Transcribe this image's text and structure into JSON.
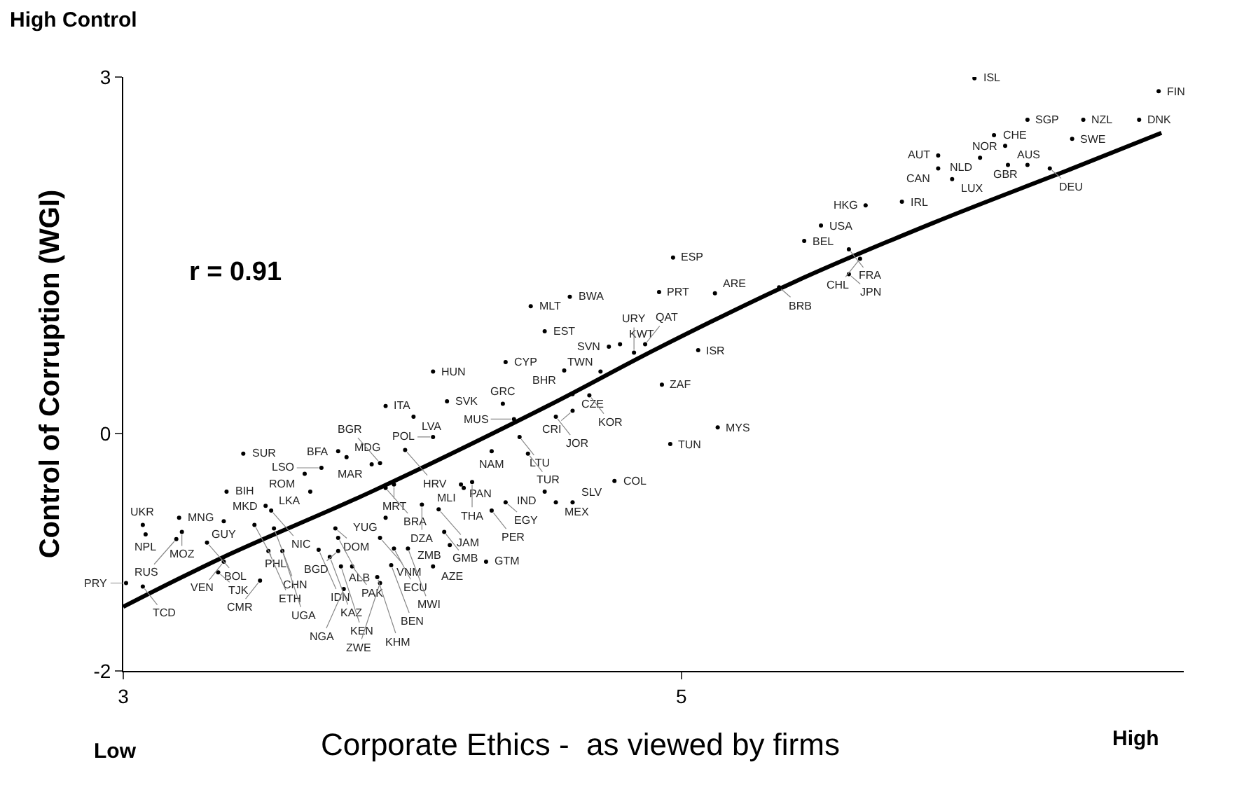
{
  "chart_data": {
    "type": "scatter",
    "xlabel": "Corporate Ethics -  as viewed by firms",
    "ylabel": "Control of Corruption (WGI)",
    "xlim": [
      3,
      6.8
    ],
    "xticks": [
      3,
      5
    ],
    "ylim": [
      -2,
      3
    ],
    "yticks": [
      3,
      0,
      -2
    ],
    "series": [
      {
        "type": "scatter",
        "color": "#000000",
        "marker": "circle",
        "x": [
          4.46,
          4.6,
          4.51,
          4.74,
          4.11,
          4.37,
          4.58,
          4.71,
          3.94,
          4.16,
          4.04,
          4.36,
          4.61,
          4.67,
          4.61,
          4.55,
          4.4,
          4.42,
          4.93,
          4.11,
          3.43,
          3.77,
          3.8,
          4.01,
          4.32,
          4.45,
          3.89,
          3.92,
          3.71,
          3.65,
          3.67,
          3.37,
          3.97,
          3.94,
          4.21,
          4.22,
          4.25,
          4.51,
          4.76,
          4.37,
          4.55,
          4.61,
          4.07,
          4.13,
          4.32,
          3.51,
          3.53,
          3.2,
          3.36,
          3.47,
          3.94,
          3.07,
          3.08,
          3.21,
          3.19,
          3.54,
          3.76,
          4.15,
          3.3,
          3.52,
          3.77,
          3.92,
          3.97,
          4.02,
          4.17,
          3.57,
          3.7,
          3.77,
          3.74,
          3.78,
          3.82,
          3.96,
          4.11,
          4.3,
          3.36,
          3.34,
          3.49,
          3.91,
          3.79,
          3.92,
          3.01,
          3.07,
          6.05,
          6.71,
          6.24,
          6.44,
          6.64,
          6.12,
          6.16,
          6.4,
          5.92,
          6.07,
          6.17,
          6.24,
          6.32,
          5.92,
          5.97,
          5.66,
          5.79,
          5.5,
          5.44,
          5.6,
          5.64,
          5.6,
          4.97,
          4.92,
          5.12,
          5.35,
          5.06,
          5.13,
          4.96,
          4.78,
          4.83,
          4.87
        ],
        "values": [
          1.07,
          1.15,
          0.86,
          0.73,
          0.52,
          0.6,
          0.53,
          0.52,
          0.23,
          0.27,
          0.14,
          0.25,
          0.33,
          0.32,
          0.19,
          0.14,
          0.12,
          -0.03,
          0.41,
          -0.03,
          -0.17,
          -0.15,
          -0.2,
          -0.14,
          -0.15,
          -0.17,
          -0.26,
          -0.25,
          -0.29,
          -0.34,
          -0.49,
          -0.49,
          -0.43,
          -0.46,
          -0.43,
          -0.46,
          -0.41,
          -0.49,
          -0.4,
          -0.58,
          -0.58,
          -0.58,
          -0.6,
          -0.64,
          -0.65,
          -0.61,
          -0.65,
          -0.71,
          -0.74,
          -0.77,
          -0.71,
          -0.77,
          -0.85,
          -0.83,
          -0.89,
          -0.8,
          -0.8,
          -0.83,
          -0.92,
          -0.99,
          -0.88,
          -0.88,
          -0.97,
          -0.97,
          -0.94,
          -0.99,
          -0.98,
          -0.99,
          -1.04,
          -1.12,
          -1.12,
          -1.11,
          -1.12,
          -1.08,
          -1.08,
          -1.17,
          -1.24,
          -1.21,
          -1.31,
          -1.26,
          -1.26,
          -1.29,
          2.99,
          2.88,
          2.64,
          2.64,
          2.64,
          2.51,
          2.42,
          2.48,
          2.34,
          2.32,
          2.26,
          2.26,
          2.23,
          2.23,
          2.14,
          1.92,
          1.95,
          1.75,
          1.62,
          1.55,
          1.47,
          1.34,
          1.48,
          1.19,
          1.18,
          1.23,
          0.7,
          0.05,
          -0.09,
          0.75,
          0.68,
          0.75
        ]
      },
      {
        "type": "line",
        "color": "#000000",
        "line_style": "solid",
        "x": [
          3,
          3.36,
          3.89,
          4.52,
          4.91,
          5.4,
          5.9,
          6.4,
          6.72
        ],
        "values": [
          -1.46,
          -1.04,
          -0.49,
          0.23,
          0.71,
          1.27,
          1.77,
          2.23,
          2.53
        ]
      }
    ],
    "annotations": [
      "High Control",
      "Low",
      "High",
      "r = 0.91",
      {
        "text": "MLT",
        "x": 4.46,
        "y": 1.07
      },
      {
        "text": "BWA",
        "x": 4.6,
        "y": 1.15
      },
      {
        "text": "EST",
        "x": 4.51,
        "y": 0.86
      },
      {
        "text": "SVN",
        "x": 4.74,
        "y": 0.73
      },
      {
        "text": "HUN",
        "x": 4.11,
        "y": 0.52
      },
      {
        "text": "CYP",
        "x": 4.37,
        "y": 0.6
      },
      {
        "text": "BHR",
        "x": 4.58,
        "y": 0.53
      },
      {
        "text": "TWN",
        "x": 4.71,
        "y": 0.52
      },
      {
        "text": "ITA",
        "x": 3.94,
        "y": 0.23
      },
      {
        "text": "SVK",
        "x": 4.16,
        "y": 0.27
      },
      {
        "text": "LVA",
        "x": 4.04,
        "y": 0.14
      },
      {
        "text": "GRC",
        "x": 4.36,
        "y": 0.25
      },
      {
        "text": "CZE",
        "x": 4.61,
        "y": 0.33
      },
      {
        "text": "KOR",
        "x": 4.67,
        "y": 0.32
      },
      {
        "text": "CRI",
        "x": 4.61,
        "y": 0.19
      },
      {
        "text": "JOR",
        "x": 4.55,
        "y": 0.14
      },
      {
        "text": "MUS",
        "x": 4.4,
        "y": 0.12
      },
      {
        "text": "LTU",
        "x": 4.42,
        "y": -0.03
      },
      {
        "text": "ZAF",
        "x": 4.93,
        "y": 0.41
      },
      {
        "text": "POL",
        "x": 4.11,
        "y": -0.03
      },
      {
        "text": "SUR",
        "x": 3.43,
        "y": -0.17
      },
      {
        "text": "BFA",
        "x": 3.77,
        "y": -0.15
      },
      {
        "text": "MDG",
        "x": 3.8,
        "y": -0.2
      },
      {
        "text": "HRV",
        "x": 4.01,
        "y": -0.14
      },
      {
        "text": "NAM",
        "x": 4.32,
        "y": -0.15
      },
      {
        "text": "TUR",
        "x": 4.45,
        "y": -0.17
      },
      {
        "text": "MAR",
        "x": 3.89,
        "y": -0.26
      },
      {
        "text": "BGR",
        "x": 3.92,
        "y": -0.25
      },
      {
        "text": "LSO",
        "x": 3.71,
        "y": -0.29
      },
      {
        "text": "ROM",
        "x": 3.65,
        "y": -0.34
      },
      {
        "text": "LKA",
        "x": 3.67,
        "y": -0.49
      },
      {
        "text": "BIH",
        "x": 3.37,
        "y": -0.49
      },
      {
        "text": "MRT",
        "x": 3.97,
        "y": -0.43
      },
      {
        "text": "BRA",
        "x": 3.94,
        "y": -0.46
      },
      {
        "text": "PAN",
        "x": 4.21,
        "y": -0.43
      },
      {
        "text": "MLI",
        "x": 4.22,
        "y": -0.46
      },
      {
        "text": "THA",
        "x": 4.25,
        "y": -0.41
      },
      {
        "text": "IND",
        "x": 4.51,
        "y": -0.49
      },
      {
        "text": "COL",
        "x": 4.76,
        "y": -0.4
      },
      {
        "text": "EGY",
        "x": 4.37,
        "y": -0.58
      },
      {
        "text": "MEX",
        "x": 4.55,
        "y": -0.58
      },
      {
        "text": "SLV",
        "x": 4.61,
        "y": -0.58
      },
      {
        "text": "DZA",
        "x": 4.07,
        "y": -0.6
      },
      {
        "text": "JAM",
        "x": 4.13,
        "y": -0.64
      },
      {
        "text": "PER",
        "x": 4.32,
        "y": -0.65
      },
      {
        "text": "MKD",
        "x": 3.51,
        "y": -0.61
      },
      {
        "text": "NIC",
        "x": 3.53,
        "y": -0.65
      },
      {
        "text": "MNG",
        "x": 3.2,
        "y": -0.71
      },
      {
        "text": "GUY",
        "x": 3.36,
        "y": -0.74
      },
      {
        "text": "PHL",
        "x": 3.47,
        "y": -0.77
      },
      {
        "text": "YUG",
        "x": 3.94,
        "y": -0.71
      },
      {
        "text": "UKR",
        "x": 3.07,
        "y": -0.77
      },
      {
        "text": "NPL",
        "x": 3.08,
        "y": -0.85
      },
      {
        "text": "MOZ",
        "x": 3.21,
        "y": -0.83
      },
      {
        "text": "RUS",
        "x": 3.19,
        "y": -0.89
      },
      {
        "text": "CHN",
        "x": 3.54,
        "y": -0.8
      },
      {
        "text": "DOM",
        "x": 3.76,
        "y": -0.8
      },
      {
        "text": "GMB",
        "x": 4.15,
        "y": -0.83
      },
      {
        "text": "BOL",
        "x": 3.3,
        "y": -0.92
      },
      {
        "text": "ETH",
        "x": 3.52,
        "y": -0.99
      },
      {
        "text": "ALB",
        "x": 3.77,
        "y": -0.88
      },
      {
        "text": "VNM",
        "x": 3.92,
        "y": -0.88
      },
      {
        "text": "ECU",
        "x": 3.97,
        "y": -0.97
      },
      {
        "text": "MWI",
        "x": 4.02,
        "y": -0.97
      },
      {
        "text": "ZMB",
        "x": 4.17,
        "y": -0.94
      },
      {
        "text": "UGA",
        "x": 3.57,
        "y": -0.99
      },
      {
        "text": "IDN",
        "x": 3.7,
        "y": -0.98
      },
      {
        "text": "BGD",
        "x": 3.77,
        "y": -0.99
      },
      {
        "text": "KAZ",
        "x": 3.74,
        "y": -1.04
      },
      {
        "text": "KEN",
        "x": 3.78,
        "y": -1.12
      },
      {
        "text": "PAK",
        "x": 3.82,
        "y": -1.12
      },
      {
        "text": "BEN",
        "x": 3.96,
        "y": -1.11
      },
      {
        "text": "AZE",
        "x": 4.11,
        "y": -1.12
      },
      {
        "text": "GTM",
        "x": 4.3,
        "y": -1.08
      },
      {
        "text": "VEN",
        "x": 3.36,
        "y": -1.08
      },
      {
        "text": "TJK",
        "x": 3.34,
        "y": -1.17
      },
      {
        "text": "CMR",
        "x": 3.49,
        "y": -1.24
      },
      {
        "text": "KHM",
        "x": 3.91,
        "y": -1.21
      },
      {
        "text": "NGA",
        "x": 3.79,
        "y": -1.31
      },
      {
        "text": "ZWE",
        "x": 3.92,
        "y": -1.26
      },
      {
        "text": "PRY",
        "x": 3.01,
        "y": -1.26
      },
      {
        "text": "TCD",
        "x": 3.07,
        "y": -1.29
      },
      {
        "text": "ISL",
        "x": 6.05,
        "y": 2.99
      },
      {
        "text": "FIN",
        "x": 6.71,
        "y": 2.88
      },
      {
        "text": "SGP",
        "x": 6.24,
        "y": 2.64
      },
      {
        "text": "NZL",
        "x": 6.44,
        "y": 2.64
      },
      {
        "text": "DNK",
        "x": 6.64,
        "y": 2.64
      },
      {
        "text": "CHE",
        "x": 6.12,
        "y": 2.51
      },
      {
        "text": "NOR",
        "x": 6.16,
        "y": 2.42
      },
      {
        "text": "SWE",
        "x": 6.4,
        "y": 2.48
      },
      {
        "text": "AUT",
        "x": 5.92,
        "y": 2.34
      },
      {
        "text": "NLD",
        "x": 6.07,
        "y": 2.32
      },
      {
        "text": "AUS",
        "x": 6.17,
        "y": 2.26
      },
      {
        "text": "GBR",
        "x": 6.24,
        "y": 2.26
      },
      {
        "text": "DEU",
        "x": 6.32,
        "y": 2.23
      },
      {
        "text": "CAN",
        "x": 5.92,
        "y": 2.23
      },
      {
        "text": "LUX",
        "x": 5.97,
        "y": 2.14
      },
      {
        "text": "HKG",
        "x": 5.66,
        "y": 1.92
      },
      {
        "text": "IRL",
        "x": 5.79,
        "y": 1.95
      },
      {
        "text": "USA",
        "x": 5.5,
        "y": 1.75
      },
      {
        "text": "BEL",
        "x": 5.44,
        "y": 1.62
      },
      {
        "text": "FRA",
        "x": 5.6,
        "y": 1.55
      },
      {
        "text": "CHL",
        "x": 5.64,
        "y": 1.47
      },
      {
        "text": "JPN",
        "x": 5.6,
        "y": 1.34
      },
      {
        "text": "ESP",
        "x": 4.97,
        "y": 1.48
      },
      {
        "text": "PRT",
        "x": 4.92,
        "y": 1.19
      },
      {
        "text": "ARE",
        "x": 5.12,
        "y": 1.18
      },
      {
        "text": "BRB",
        "x": 5.35,
        "y": 1.23
      },
      {
        "text": "ISR",
        "x": 5.06,
        "y": 0.7
      },
      {
        "text": "MYS",
        "x": 5.13,
        "y": 0.05
      },
      {
        "text": "TUN",
        "x": 4.96,
        "y": -0.09
      },
      {
        "text": "KWT",
        "x": 4.78,
        "y": 0.75
      },
      {
        "text": "URY",
        "x": 4.83,
        "y": 0.68
      },
      {
        "text": "QAT",
        "x": 4.87,
        "y": 0.75
      }
    ]
  }
}
